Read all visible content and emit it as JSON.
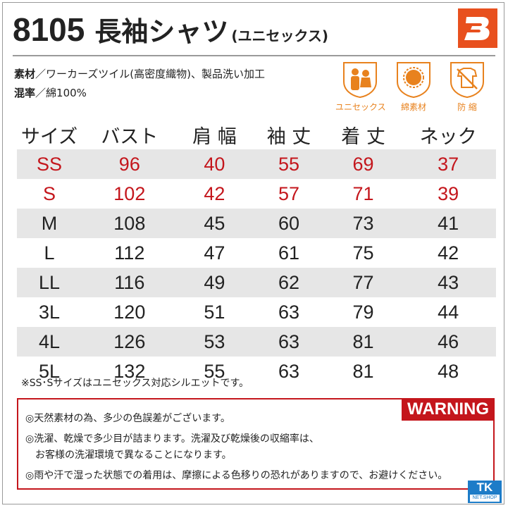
{
  "title": {
    "code": "8105",
    "name": "長袖シャツ",
    "sub": "(ユニセックス)"
  },
  "brand_logo": {
    "icon": "burtle-b-logo",
    "color": "#e8501e"
  },
  "specs": [
    {
      "key": "素材",
      "sep": "／",
      "value": "ワーカーズツイル(高密度織物)、製品洗い加工"
    },
    {
      "key": "混率",
      "sep": "／",
      "value": "綿100%"
    }
  ],
  "marks": [
    {
      "icon": "unisex-icon",
      "label": "ユニセックス"
    },
    {
      "icon": "cotton-icon",
      "label": "綿素材"
    },
    {
      "icon": "shrink-proof-icon",
      "label": "防 縮"
    }
  ],
  "size_table": {
    "headers": [
      "サイズ",
      "バスト",
      "肩 幅",
      "袖 丈",
      "着 丈",
      "ネック"
    ],
    "rows": [
      [
        "SS",
        "96",
        "40",
        "55",
        "69",
        "37"
      ],
      [
        "S",
        "102",
        "42",
        "57",
        "71",
        "39"
      ],
      [
        "M",
        "108",
        "45",
        "60",
        "73",
        "41"
      ],
      [
        "L",
        "112",
        "47",
        "61",
        "75",
        "42"
      ],
      [
        "LL",
        "116",
        "49",
        "62",
        "77",
        "43"
      ],
      [
        "3L",
        "120",
        "51",
        "63",
        "79",
        "44"
      ],
      [
        "4L",
        "126",
        "53",
        "63",
        "81",
        "46"
      ],
      [
        "5L",
        "132",
        "55",
        "63",
        "81",
        "48"
      ]
    ],
    "highlight_color": "#c4161c"
  },
  "note": "※SS･Sサイズはユニセックス対応シルエットです。",
  "warning": {
    "label": "WARNING",
    "lines": [
      "◎天然素材の為、多少の色誤差がございます。",
      "◎洗濯、乾燥で多少目が詰まります。洗濯及び乾燥後の収縮率は、",
      "　お客様の洗濯環境で異なることになります。",
      "◎雨や汗で湿った状態での着用は、摩擦による色移りの恐れがありますので、お避けください。"
    ]
  },
  "shop_logo": {
    "main": "TK",
    "sub": "NET.SHOP"
  }
}
